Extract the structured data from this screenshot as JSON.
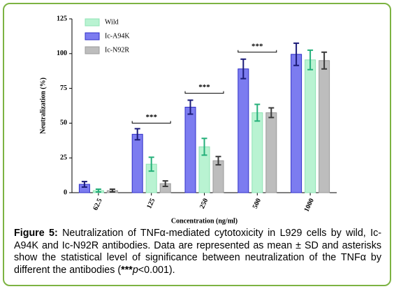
{
  "chart_data": {
    "type": "bar",
    "y_label": "Neutralization (%)",
    "x_label": "Concentration (ng/ml)",
    "categories": [
      "62.5",
      "125",
      "250",
      "500",
      "1000"
    ],
    "series": [
      {
        "name": "Wild",
        "color": "#b9f3d2",
        "edge": "#8fe3b4",
        "error_color": "#25b07a",
        "values": [
          1.5,
          20.5,
          33,
          57.5,
          95.5
        ],
        "errors": [
          1,
          5,
          6,
          6,
          7
        ]
      },
      {
        "name": "Ic-A94K",
        "color": "#7c7cf0",
        "edge": "#2f2fc8",
        "error_color": "#1b1b78",
        "values": [
          6,
          42,
          61.5,
          89,
          99.5
        ],
        "errors": [
          2,
          4,
          5,
          7,
          8
        ]
      },
      {
        "name": "Ic-N92R",
        "color": "#bdbdbd",
        "edge": "#9a9a9a",
        "error_color": "#3a3a3a",
        "values": [
          1.5,
          6.5,
          23,
          57.5,
          95
        ],
        "errors": [
          1,
          2,
          3,
          3.5,
          6
        ]
      }
    ],
    "annotations": [
      {
        "text": "***",
        "x": "125",
        "y": 50
      },
      {
        "text": "***",
        "x": "250",
        "y": 71.5
      },
      {
        "text": "***",
        "x": "500",
        "y": 101
      }
    ],
    "ylim": [
      0,
      125
    ],
    "yticks": [
      0,
      25,
      50,
      75,
      100,
      125
    ]
  },
  "caption": {
    "label": "Figure 5:",
    "text_before": "Neutralization of TNFα-mediated cytotoxicity in L929 cells by wild, Ic-A94K and Ic-N92R antibodies. Data are represented as mean ± SD and asterisks show the statistical level of significance between neutralization of the TNFα by different the antibodies (",
    "stars": "***",
    "italic": "p",
    "text_after": "<0.001)."
  }
}
